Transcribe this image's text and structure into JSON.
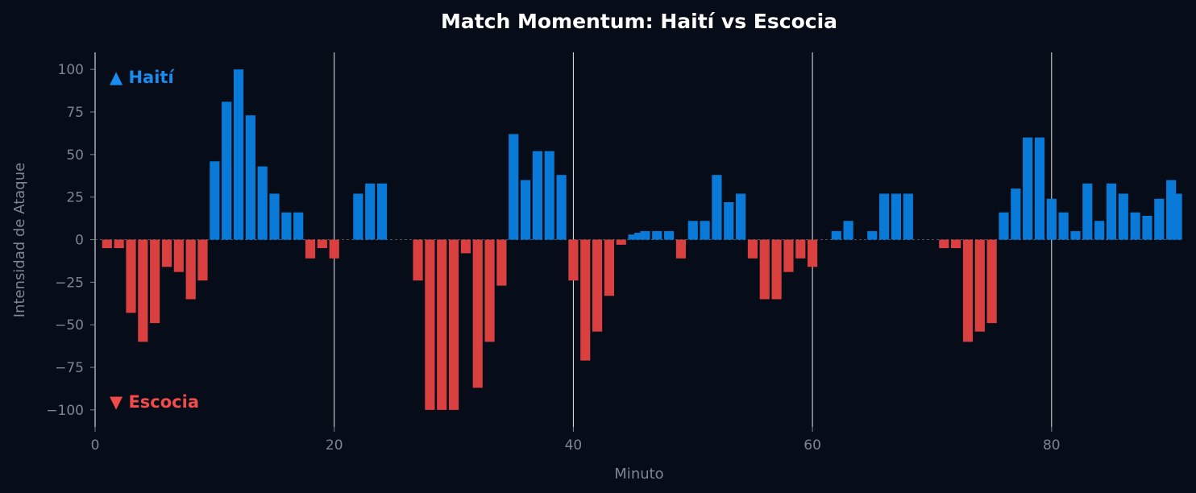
{
  "colors": {
    "background": "#060d18",
    "home": "#0a7ad8",
    "away": "#db4041",
    "title": "#ffffff",
    "tick": "#7d8591",
    "vline": "#ffffff",
    "legend_home": "#1a8cf0",
    "legend_away": "#f14b4b"
  },
  "legend": {
    "home": "▲ Haití",
    "away": "▼ Escocia"
  },
  "chart_data": {
    "type": "bar",
    "title": "Match Momentum: Haití vs Escocia",
    "xlabel": "Minuto",
    "ylabel": "Intensidad de Ataque",
    "xlim": [
      0,
      91
    ],
    "ylim": [
      -110,
      110
    ],
    "xticks": [
      0,
      20,
      40,
      60,
      80
    ],
    "yticks": [
      -100,
      -75,
      -50,
      -25,
      0,
      25,
      50,
      75,
      100
    ],
    "period_lines": [
      20,
      40,
      60,
      80
    ],
    "grid": false,
    "series": [
      {
        "name": "Haití",
        "sign": "positive"
      },
      {
        "name": "Escocia",
        "sign": "negative"
      }
    ],
    "x": [
      1,
      2,
      3,
      4,
      5,
      6,
      7,
      8,
      9,
      10,
      11,
      12,
      13,
      14,
      15,
      16,
      17,
      18,
      19,
      20,
      22,
      23,
      24,
      27,
      28,
      29,
      30,
      31,
      32,
      33,
      34,
      35,
      36,
      37,
      38,
      39,
      40,
      41,
      42,
      43,
      44,
      45,
      45.5,
      46,
      47,
      48,
      49,
      50,
      51,
      52,
      53,
      54,
      55,
      56,
      57,
      58,
      59,
      60,
      62,
      63,
      65,
      66,
      67,
      68,
      71,
      72,
      73,
      74,
      75,
      76,
      77,
      78,
      79,
      80,
      81,
      82,
      83,
      84,
      85,
      86,
      87,
      88,
      89,
      90,
      90.5
    ],
    "values": [
      -5,
      -5,
      -43,
      -60,
      -49,
      -16,
      -19,
      -35,
      -24,
      46,
      81,
      100,
      73,
      43,
      27,
      16,
      16,
      -11,
      -5,
      -11,
      27,
      33,
      33,
      -24,
      -100,
      -100,
      -100,
      -8,
      -87,
      -60,
      -27,
      62,
      35,
      52,
      52,
      38,
      -24,
      -71,
      -54,
      -33,
      -3,
      3,
      4,
      5,
      5,
      5,
      -11,
      11,
      11,
      38,
      22,
      27,
      -11,
      -35,
      -35,
      -19,
      -11,
      -16,
      5,
      11,
      5,
      27,
      27,
      27,
      -5,
      -5,
      -60,
      -54,
      -49,
      16,
      30,
      60,
      60,
      24,
      16,
      5,
      33,
      11,
      33,
      27,
      16,
      14,
      24,
      35,
      27
    ]
  }
}
